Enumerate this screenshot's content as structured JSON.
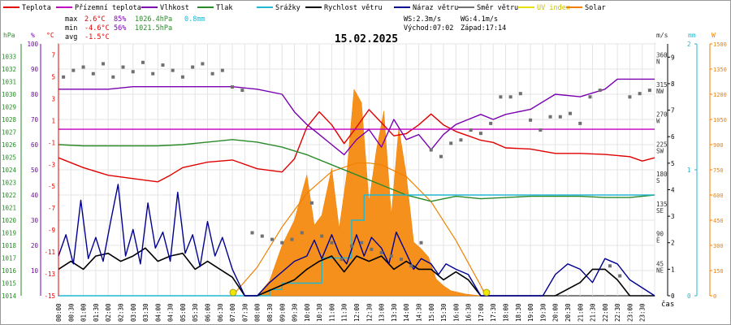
{
  "legend": [
    {
      "label": "Teplota",
      "color": "#e00000"
    },
    {
      "label": "Přízemní teplota",
      "color": "#c000c0"
    },
    {
      "label": "Vlhkost",
      "color": "#7a00b0"
    },
    {
      "label": "Tlak",
      "color": "#2a8a2a"
    },
    {
      "label": "Srážky",
      "color": "#20b8d0"
    },
    {
      "label": "Rychlost větru",
      "color": "#000000"
    },
    {
      "label": "Náraz větru",
      "color": "#000090"
    },
    {
      "label": "Směr větru",
      "color": "#707070"
    },
    {
      "label": "UV index",
      "color": "#e8e000"
    },
    {
      "label": "Solar",
      "color": "#f08000"
    }
  ],
  "stats": {
    "max_label": "max",
    "max_temp": "2.6°C",
    "max_hum": "85%",
    "max_press": "1026.4hPa",
    "rain": "0.8mm",
    "min_label": "min",
    "min_temp": "-4.6°C",
    "min_hum": "56%",
    "min_press": "1021.5hPa",
    "avg_label": "avg",
    "avg_temp": "-1.5°C",
    "ws": "WS:2.3m/s",
    "wg": "WG:4.1m/s",
    "sunrise": "Východ:07:02",
    "sunset": "Západ:17:14"
  },
  "chart_data": {
    "type": "line",
    "title": "15.02.2025",
    "xlabel": "čas",
    "axis_units": {
      "hpa": "hPa",
      "pct": "%",
      "temp": "°C",
      "dir": "°",
      "ms": "m/s",
      "mm": "mm",
      "wm2": "W"
    },
    "x_ticks": [
      "00:00",
      "00:30",
      "01:00",
      "01:30",
      "02:00",
      "02:30",
      "03:00",
      "03:30",
      "04:00",
      "04:30",
      "05:00",
      "05:30",
      "06:00",
      "06:30",
      "07:00",
      "07:30",
      "08:00",
      "08:30",
      "09:00",
      "09:30",
      "10:00",
      "10:30",
      "11:00",
      "11:30",
      "12:00",
      "12:30",
      "13:00",
      "13:30",
      "14:00",
      "14:30",
      "15:00",
      "15:30",
      "16:00",
      "16:30",
      "17:00",
      "17:30",
      "18:00",
      "18:30",
      "19:00",
      "19:30",
      "20:00",
      "20:30",
      "21:00",
      "21:30",
      "22:00",
      "22:30",
      "23:00",
      "23:30"
    ],
    "axes": {
      "pressure": {
        "ticks": [
          1014,
          1015,
          1016,
          1017,
          1018,
          1019,
          1020,
          1021,
          1022,
          1023,
          1024,
          1025,
          1026,
          1027,
          1028,
          1029,
          1030,
          1031,
          1032,
          1033
        ],
        "range": [
          1014,
          1034
        ]
      },
      "humidity": {
        "ticks": [
          10,
          20,
          30,
          40,
          50,
          60,
          70,
          80,
          90,
          100
        ],
        "range": [
          0,
          100
        ]
      },
      "temperature": {
        "ticks": [
          -15,
          -13,
          -11,
          -9,
          -7,
          -5,
          -3,
          -1,
          1,
          3,
          5,
          7
        ],
        "range": [
          -15,
          8
        ]
      },
      "direction": {
        "ticks": [
          45,
          90,
          135,
          180,
          225,
          270,
          315,
          360
        ],
        "labels": [
          "NE",
          "E",
          "SE",
          "S",
          "SW",
          "W",
          "NW",
          "N"
        ],
        "range": [
          0,
          380
        ]
      },
      "wind": {
        "ticks": [
          0,
          1,
          2,
          3,
          4,
          5,
          6,
          7,
          8,
          9
        ],
        "range": [
          0,
          9.5
        ]
      },
      "rain": {
        "ticks": [
          0,
          1,
          2
        ],
        "range": [
          0,
          2
        ]
      },
      "solar": {
        "ticks": [
          0,
          150,
          300,
          450,
          600,
          750,
          900,
          1050,
          1200,
          1350,
          1500
        ],
        "range": [
          0,
          1500
        ]
      }
    },
    "series": [
      {
        "name": "Teplota",
        "axis": "temperature",
        "color": "#e00000",
        "x": [
          0,
          1,
          2,
          3,
          4,
          4.5,
          5,
          6,
          7,
          8,
          9,
          9.5,
          10,
          10.5,
          11,
          11.5,
          12,
          12.5,
          13,
          13.5,
          14,
          14.5,
          15,
          15.5,
          16,
          16.5,
          17,
          17.5,
          18,
          19,
          20,
          21,
          22,
          23,
          23.5,
          24
        ],
        "y": [
          -2.4,
          -3.3,
          -4,
          -4.3,
          -4.6,
          -4,
          -3.3,
          -2.8,
          -2.6,
          -3.4,
          -3.7,
          -2.5,
          0.4,
          1.8,
          0.6,
          -1.1,
          0.4,
          2,
          0.8,
          -0.4,
          -0.2,
          0.6,
          1.6,
          0.6,
          0,
          -0.4,
          -0.8,
          -1,
          -1.5,
          -1.6,
          -2,
          -2,
          -2.1,
          -2.3,
          -2.7,
          -2.4
        ]
      },
      {
        "name": "Přízemní teplota",
        "axis": "temperature",
        "color": "#c000c0",
        "x": [
          0,
          24
        ],
        "y": [
          0.2,
          0.2
        ]
      },
      {
        "name": "Vlhkost",
        "axis": "humidity",
        "color": "#7a00b0",
        "x": [
          0,
          1,
          2,
          3,
          4,
          5,
          6,
          7,
          8,
          9,
          9.5,
          10,
          10.5,
          11,
          11.5,
          12,
          12.5,
          13,
          13.5,
          14,
          14.5,
          15,
          15.5,
          16,
          16.5,
          17,
          17.5,
          18,
          19,
          20,
          21,
          22,
          22.5,
          23,
          24
        ],
        "y": [
          82,
          82,
          82,
          83,
          83,
          83,
          83,
          83,
          82,
          80,
          73,
          68,
          64,
          60,
          56,
          62,
          66,
          59,
          70,
          62,
          64,
          58,
          64,
          68,
          70,
          72,
          70,
          72,
          74,
          80,
          79,
          82,
          86,
          86,
          86
        ]
      },
      {
        "name": "Tlak",
        "axis": "pressure",
        "color": "#2a8a2a",
        "x": [
          0,
          1,
          2,
          3,
          4,
          5,
          6,
          7,
          8,
          9,
          10,
          11,
          12,
          13,
          14,
          15,
          16,
          17,
          18,
          19,
          20,
          21,
          22,
          23,
          24
        ],
        "y": [
          1026.0,
          1025.9,
          1025.9,
          1025.9,
          1025.9,
          1026.0,
          1026.2,
          1026.4,
          1026.2,
          1025.8,
          1025.2,
          1024.4,
          1023.6,
          1022.8,
          1022.0,
          1021.5,
          1021.9,
          1021.7,
          1021.8,
          1021.9,
          1021.9,
          1021.9,
          1021.8,
          1021.8,
          1022.0
        ]
      },
      {
        "name": "Srážky",
        "axis": "rain",
        "color": "#20b8d0",
        "x": [
          0,
          8.5,
          8.5,
          9.0,
          9.0,
          10.6,
          10.6,
          11.8,
          11.8,
          12.3,
          12.3,
          24
        ],
        "y": [
          0,
          0,
          0.05,
          0.05,
          0.1,
          0.1,
          0.3,
          0.3,
          0.6,
          0.6,
          0.8,
          0.8
        ]
      },
      {
        "name": "Rychlost větru",
        "axis": "wind",
        "color": "#000000",
        "x": [
          0,
          0.5,
          1,
          1.5,
          2,
          2.5,
          3,
          3.5,
          4,
          4.5,
          5,
          5.5,
          6,
          6.5,
          7,
          7.5,
          8,
          9,
          9.5,
          10,
          10.5,
          11,
          11.5,
          12,
          12.5,
          13,
          13.5,
          14,
          14.5,
          15,
          15.5,
          16,
          16.5,
          17,
          17.5,
          18,
          19,
          20,
          21,
          21.5,
          22,
          22.5,
          23,
          24
        ],
        "y": [
          1.0,
          1.3,
          1.0,
          1.5,
          1.6,
          1.3,
          1.5,
          1.8,
          1.3,
          1.5,
          1.6,
          1.0,
          1.3,
          1.0,
          0.7,
          0,
          0,
          0.4,
          0.6,
          1.0,
          1.3,
          1.5,
          0.9,
          1.5,
          1.3,
          1.5,
          1.0,
          1.3,
          1.0,
          1.0,
          0.6,
          0.9,
          0.6,
          0,
          0,
          0,
          0,
          0,
          0.5,
          1.0,
          1.0,
          0.6,
          0,
          0
        ]
      },
      {
        "name": "Náraz větru",
        "axis": "wind",
        "color": "#000090",
        "x": [
          0,
          0.3,
          0.6,
          0.9,
          1.2,
          1.5,
          1.8,
          2.1,
          2.4,
          2.7,
          3,
          3.3,
          3.6,
          3.9,
          4.2,
          4.5,
          4.8,
          5.1,
          5.4,
          5.7,
          6,
          6.3,
          6.6,
          7,
          7.5,
          8,
          8.5,
          9,
          9.5,
          10,
          10.3,
          10.6,
          11,
          11.3,
          11.6,
          12,
          12.3,
          12.6,
          13,
          13.3,
          13.6,
          14,
          14.3,
          14.6,
          15,
          15.3,
          15.6,
          16,
          16.5,
          17,
          17.5,
          18,
          19,
          19.5,
          20,
          20.5,
          21,
          21.5,
          22,
          22.5,
          23,
          24
        ],
        "y": [
          1.5,
          2.3,
          1.2,
          3.6,
          1.4,
          2.2,
          1.3,
          2.8,
          4.2,
          1.5,
          2.5,
          1.2,
          3.5,
          1.8,
          2.4,
          1.3,
          3.9,
          1.6,
          2.3,
          1.1,
          2.8,
          1.5,
          2.2,
          1.0,
          0,
          0,
          0.5,
          0.9,
          1.3,
          1.5,
          2.1,
          1.4,
          2.3,
          1.6,
          1.2,
          2.3,
          1.5,
          2.2,
          1.8,
          1.2,
          2.4,
          1.6,
          1.0,
          1.4,
          1.2,
          0.8,
          1.2,
          1.0,
          0.8,
          0,
          0,
          0,
          0,
          0,
          0.8,
          1.2,
          1.0,
          0.5,
          1.4,
          1.2,
          0.6,
          0
        ]
      },
      {
        "name": "Směr větru",
        "axis": "direction",
        "color": "#707070",
        "x": [
          0.2,
          0.6,
          1.0,
          1.4,
          1.8,
          2.2,
          2.6,
          3.0,
          3.4,
          3.8,
          4.2,
          4.6,
          5.0,
          5.4,
          5.8,
          6.2,
          6.6,
          7.0,
          7.4,
          7.8,
          8.2,
          8.6,
          9.0,
          9.4,
          9.8,
          10.2,
          10.6,
          11.0,
          11.4,
          11.8,
          12.2,
          12.6,
          13.0,
          13.4,
          13.8,
          14.2,
          14.6,
          15.0,
          15.4,
          15.8,
          16.2,
          16.6,
          17.0,
          17.4,
          17.8,
          18.2,
          18.6,
          19.0,
          19.4,
          19.8,
          20.2,
          20.6,
          21.0,
          21.4,
          21.8,
          22.2,
          22.6,
          23.0,
          23.4,
          23.8
        ],
        "y": [
          330,
          340,
          345,
          335,
          350,
          330,
          345,
          338,
          352,
          335,
          348,
          340,
          330,
          345,
          350,
          335,
          340,
          315,
          310,
          95,
          90,
          85,
          80,
          85,
          95,
          140,
          90,
          80,
          55,
          75,
          80,
          70,
          65,
          60,
          55,
          45,
          80,
          220,
          210,
          230,
          235,
          250,
          245,
          260,
          300,
          300,
          305,
          265,
          250,
          270,
          270,
          275,
          260,
          300,
          310,
          45,
          30,
          300,
          305,
          310
        ]
      }
    ],
    "solar": {
      "name": "Solar",
      "axis": "solar",
      "color": "#f08000",
      "x": [
        8.0,
        8.5,
        9.0,
        9.5,
        10.0,
        10.3,
        10.6,
        11.0,
        11.3,
        11.6,
        11.9,
        12.2,
        12.5,
        12.8,
        13.1,
        13.4,
        13.7,
        14.0,
        14.3,
        14.6,
        14.9,
        15.2,
        15.5,
        15.8,
        16.1,
        16.4,
        16.7,
        17.0
      ],
      "y": [
        0,
        90,
        300,
        450,
        720,
        420,
        480,
        760,
        400,
        720,
        1230,
        1150,
        560,
        870,
        1100,
        480,
        1000,
        720,
        320,
        280,
        230,
        100,
        60,
        30,
        20,
        10,
        5,
        0
      ]
    },
    "solar_theoretical": {
      "name": "Solar",
      "axis": "solar",
      "color": "#f08000",
      "x": [
        7.0,
        8.0,
        9.0,
        10.0,
        11.0,
        12.0,
        12.5,
        13.0,
        14.0,
        15.0,
        16.0,
        17.0,
        17.2
      ],
      "y": [
        0,
        170,
        410,
        610,
        740,
        790,
        790,
        780,
        710,
        560,
        330,
        60,
        0
      ]
    },
    "uv_index": {
      "name": "UV index",
      "color": "#e8e000",
      "x": [
        7.03,
        17.23
      ],
      "y": [
        0,
        0
      ]
    }
  }
}
